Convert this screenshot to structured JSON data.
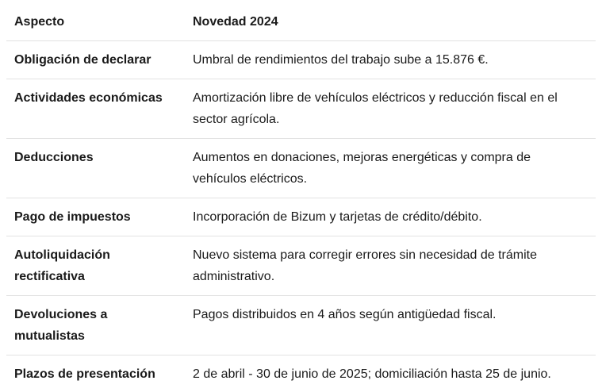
{
  "chart_data": {
    "type": "table",
    "columns": [
      "Aspecto",
      "Novedad 2024"
    ],
    "rows": [
      [
        "Obligación de declarar",
        "Umbral de rendimientos del trabajo sube a 15.876 €."
      ],
      [
        "Actividades económicas",
        "Amortización libre de vehículos eléctricos y reducción fiscal en el sector agrícola."
      ],
      [
        "Deducciones",
        "Aumentos en donaciones, mejoras energéticas y compra de vehículos eléctricos."
      ],
      [
        "Pago de impuestos",
        "Incorporación de Bizum y tarjetas de crédito/débito."
      ],
      [
        "Autoliquidación rectificativa",
        "Nuevo sistema para corregir errores sin necesidad de trámite administrativo."
      ],
      [
        "Devoluciones a mutualistas",
        "Pagos distribuidos en 4 años según antigüedad fiscal."
      ],
      [
        "Plazos de presentación",
        "2 de abril - 30 de junio de 2025; domiciliación hasta 25 de junio."
      ]
    ],
    "layout": {
      "grid": "horizontal-dividers-only",
      "header_style": "bold",
      "first_column_style": "bold"
    }
  },
  "colors": {
    "text": "#1a1a1a",
    "divider": "#e2e2e2",
    "background": "#ffffff"
  }
}
